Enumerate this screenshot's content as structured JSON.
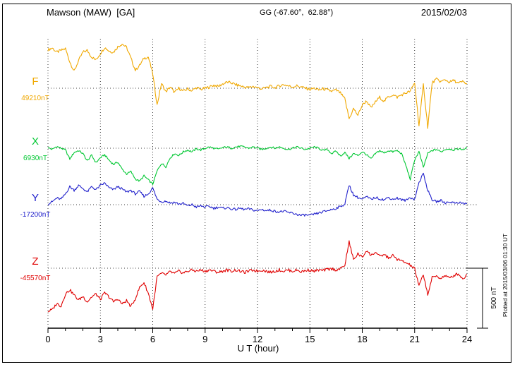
{
  "header": {
    "station": "Mawson (MAW)  [GA]",
    "coords": "GG (-67.60°,  62.88°)",
    "date": "2015/02/03"
  },
  "axes": {
    "x_label": "U T (hour)",
    "x_ticks": [
      0,
      3,
      6,
      9,
      12,
      15,
      18,
      21,
      24
    ],
    "x_range": [
      0,
      24
    ],
    "x_minor_tick_hours": 1
  },
  "scale_bar": {
    "label": "500 nT",
    "nT": 500
  },
  "footer": {
    "plotted_at": "Plotted at 2015/03/06 01:30 UT"
  },
  "chart_data": {
    "type": "line",
    "title": "Mawson (MAW) [GA] magnetogram 2015/02/03",
    "x_unit": "UT hour",
    "x_range": [
      0,
      24
    ],
    "sample_interval_hours": 0.25,
    "y_unit": "nT",
    "offsets_are_relative_to_baseline_nT": true,
    "grid": "dotted vertical lines every 3 hours; dotted horizontal baseline per component",
    "series": [
      {
        "name": "F",
        "color": "#f0a800",
        "baseline_nT": 49210,
        "baseline_label": "49210nT",
        "noise_nT": 12,
        "offsets_nT": [
          320,
          335,
          300,
          315,
          330,
          220,
          140,
          230,
          300,
          315,
          260,
          235,
          290,
          340,
          310,
          300,
          345,
          370,
          340,
          250,
          150,
          190,
          250,
          260,
          120,
          -140,
          40,
          -30,
          10,
          -35,
          0,
          -25,
          -5,
          -20,
          5,
          -10,
          0,
          10,
          25,
          15,
          35,
          50,
          45,
          30,
          20,
          10,
          5,
          15,
          5,
          -5,
          5,
          15,
          5,
          20,
          30,
          20,
          10,
          20,
          10,
          0,
          -10,
          0,
          -15,
          -5,
          -15,
          -25,
          -15,
          -40,
          -90,
          -255,
          -170,
          -225,
          -140,
          -105,
          -165,
          -115,
          -75,
          -110,
          -70,
          -55,
          -75,
          -55,
          -40,
          -25,
          45,
          -310,
          30,
          -325,
          45,
          75,
          55,
          70,
          50,
          65,
          40,
          55,
          35
        ]
      },
      {
        "name": "X",
        "color": "#00c832",
        "baseline_nT": 6930,
        "baseline_label": "6930nT",
        "noise_nT": 8,
        "offsets_nT": [
          5,
          -10,
          15,
          0,
          -15,
          -90,
          -35,
          -20,
          -45,
          -105,
          -60,
          -120,
          -80,
          -55,
          -100,
          -135,
          -115,
          -175,
          -215,
          -195,
          -255,
          -275,
          -230,
          -265,
          -300,
          -190,
          -125,
          -155,
          -80,
          -45,
          -60,
          -30,
          -15,
          -30,
          -5,
          -15,
          0,
          10,
          0,
          -10,
          5,
          10,
          0,
          10,
          15,
          10,
          0,
          10,
          0,
          -10,
          0,
          10,
          0,
          10,
          0,
          -10,
          0,
          10,
          0,
          -10,
          0,
          10,
          0,
          -20,
          -10,
          -45,
          -25,
          -65,
          -35,
          -85,
          -45,
          -60,
          -30,
          -55,
          -90,
          -45,
          -20,
          -40,
          -20,
          -30,
          -20,
          -45,
          -145,
          -260,
          -95,
          -30,
          -160,
          -45,
          -20,
          -10,
          -30,
          -10,
          -5,
          -15,
          -5,
          -10,
          0
        ]
      },
      {
        "name": "Y",
        "color": "#2222cc",
        "baseline_nT": -17200,
        "baseline_label": "-17200nT",
        "noise_nT": 10,
        "offsets_nT": [
          5,
          25,
          55,
          45,
          90,
          150,
          120,
          160,
          135,
          105,
          150,
          125,
          160,
          180,
          140,
          125,
          150,
          130,
          105,
          120,
          90,
          110,
          70,
          90,
          140,
          45,
          25,
          30,
          15,
          20,
          5,
          10,
          -10,
          0,
          -20,
          -10,
          -20,
          -15,
          -30,
          -20,
          -30,
          -25,
          -35,
          -40,
          -30,
          -40,
          -35,
          -45,
          -50,
          -40,
          -50,
          -45,
          -55,
          -60,
          -55,
          -65,
          -70,
          -80,
          -90,
          -85,
          -90,
          -80,
          -70,
          -60,
          -50,
          -40,
          -30,
          -15,
          5,
          165,
          80,
          60,
          45,
          65,
          45,
          60,
          50,
          40,
          60,
          45,
          55,
          40,
          35,
          60,
          45,
          185,
          260,
          120,
          40,
          25,
          35,
          15,
          25,
          15,
          20,
          10,
          10
        ]
      },
      {
        "name": "Z",
        "color": "#e00000",
        "baseline_nT": -45570,
        "baseline_label": "-45570nT",
        "noise_nT": 12,
        "offsets_nT": [
          -360,
          -345,
          -295,
          -315,
          -215,
          -180,
          -225,
          -265,
          -235,
          -280,
          -240,
          -215,
          -260,
          -205,
          -240,
          -280,
          -255,
          -300,
          -270,
          -320,
          -255,
          -160,
          -120,
          -210,
          -340,
          -70,
          -45,
          -55,
          -30,
          -45,
          -25,
          -40,
          -25,
          -15,
          -25,
          -15,
          -25,
          -15,
          -25,
          -35,
          -25,
          -15,
          -25,
          -15,
          -25,
          -35,
          -25,
          -15,
          -25,
          -15,
          -25,
          -35,
          -25,
          -15,
          -25,
          -15,
          -25,
          -15,
          -30,
          -20,
          -15,
          -25,
          -15,
          -20,
          -10,
          -5,
          -15,
          -5,
          25,
          220,
          70,
          120,
          90,
          150,
          105,
          135,
          95,
          115,
          85,
          105,
          75,
          60,
          45,
          25,
          -5,
          -150,
          -50,
          -220,
          -80,
          -65,
          -85,
          -60,
          -85,
          -60,
          -45,
          -90,
          -55
        ]
      }
    ]
  }
}
